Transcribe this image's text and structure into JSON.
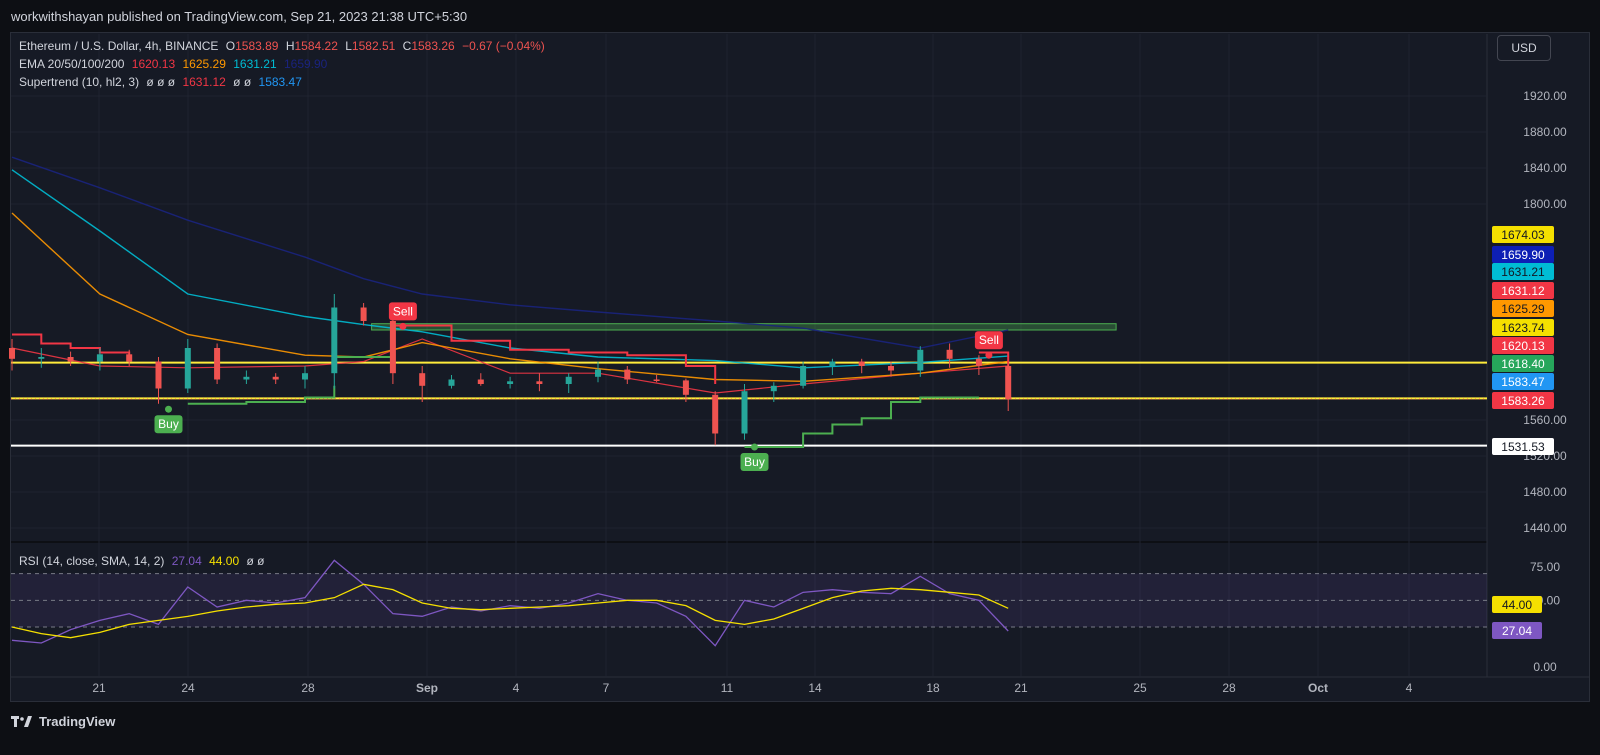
{
  "header": {
    "published": "workwithshayan published on TradingView.com, Sep 21, 2023 21:38 UTC+5:30"
  },
  "legend": {
    "symbol": "Ethereum / U.S. Dollar, 4h, BINANCE",
    "open_label": "O",
    "open": "1583.89",
    "high_label": "H",
    "high": "1584.22",
    "low_label": "L",
    "low": "1582.51",
    "close_label": "C",
    "close": "1583.26",
    "change": "−0.67 (−0.04%)",
    "ema_label": "EMA 20/50/100/200",
    "ema20": "1620.13",
    "ema50": "1625.29",
    "ema100": "1631.21",
    "ema200": "1659.90",
    "supertrend_label": "Supertrend (10, hl2, 3)",
    "supertrend_blank": "ø  ø  ø",
    "supertrend_up": "1631.12",
    "supertrend_blank2": "ø  ø",
    "supertrend_down": "1583.47",
    "rsi_label": "RSI (14, close, SMA, 14, 2)",
    "rsi": "27.04",
    "rsi_sma": "44.00",
    "rsi_blank": "ø  ø"
  },
  "currency_button": "USD",
  "brand": "TradingView",
  "colors": {
    "background": "#161a25",
    "up": "#26a69a",
    "down": "#ef5350",
    "ema20": "#f23645",
    "ema50": "#ff9800",
    "ema100": "#00bcd4",
    "ema200": "#1a237e",
    "supertrend_up": "#4caf50",
    "supertrend_down": "#f23645",
    "rsi": "#7e57c2",
    "rsi_sma": "#f5e000",
    "hline_yellow": "#ffeb3b",
    "hline_white": "#ffffff"
  },
  "chart_data": [
    {
      "type": "candlestick",
      "title": "Ethereum / U.S. Dollar, 4h, BINANCE",
      "ylim": [
        1420,
        1960
      ],
      "y_ticks": [
        "1920.00",
        "1880.00",
        "1840.00",
        "1800.00",
        "1560.00",
        "1520.00",
        "1480.00",
        "1440.00"
      ],
      "x_ticks": [
        "21",
        "24",
        "28",
        "Sep",
        "4",
        "7",
        "11",
        "14",
        "18",
        "21",
        "25",
        "28",
        "Oct",
        "4"
      ],
      "price_labels": [
        {
          "value": "1674.03",
          "color": "#f5e000",
          "text_color": "#131722"
        },
        {
          "value": "1659.90",
          "color": "#0d1fb5",
          "text_color": "#ffffff"
        },
        {
          "value": "1631.21",
          "color": "#00bcd4",
          "text_color": "#131722"
        },
        {
          "value": "1631.12",
          "color": "#f23645",
          "text_color": "#ffffff"
        },
        {
          "value": "1625.29",
          "color": "#ff9800",
          "text_color": "#131722"
        },
        {
          "value": "1623.74",
          "color": "#f5e000",
          "text_color": "#131722"
        },
        {
          "value": "1620.13",
          "color": "#f23645",
          "text_color": "#ffffff"
        },
        {
          "value": "1618.40",
          "color": "#26a65b",
          "text_color": "#ffffff"
        },
        {
          "value": "1583.47",
          "color": "#2196f3",
          "text_color": "#ffffff"
        },
        {
          "value": "1583.26",
          "color": "#f23645",
          "text_color": "#ffffff"
        },
        {
          "value": "1531.53",
          "color": "#ffffff",
          "text_color": "#131722"
        }
      ],
      "horizontal_lines": [
        {
          "value": 1623.74,
          "color": "#ffeb3b"
        },
        {
          "value": 1584,
          "color": "#ffeb3b"
        },
        {
          "value": 1531.53,
          "color": "#ffffff"
        }
      ],
      "zone": {
        "from_date": "Aug 30",
        "to_date": "Sep 24",
        "low": 1660,
        "high": 1667,
        "color": "#4caf50"
      },
      "signals": [
        {
          "label": "Buy",
          "date": "Aug 23",
          "price": 1572
        },
        {
          "label": "Sell",
          "date": "Aug 31",
          "price": 1664
        },
        {
          "label": "Buy",
          "date": "Sep 12",
          "price": 1530
        },
        {
          "label": "Sell",
          "date": "Sep 20",
          "price": 1632
        }
      ],
      "series": [
        {
          "name": "EMA 20",
          "x": [
            "Aug 18",
            "Aug 21",
            "Aug 24",
            "Aug 28",
            "Aug 30",
            "Sep 1",
            "Sep 4",
            "Sep 7",
            "Sep 11",
            "Sep 14",
            "Sep 18",
            "Sep 21"
          ],
          "values": [
            1640,
            1620,
            1618,
            1620,
            1625,
            1650,
            1612,
            1612,
            1590,
            1600,
            1612,
            1620
          ]
        },
        {
          "name": "EMA 50",
          "x": [
            "Aug 18",
            "Aug 21",
            "Aug 24",
            "Aug 28",
            "Aug 30",
            "Sep 1",
            "Sep 4",
            "Sep 7",
            "Sep 11",
            "Sep 14",
            "Sep 18",
            "Sep 21"
          ],
          "values": [
            1790,
            1700,
            1655,
            1632,
            1630,
            1646,
            1628,
            1617,
            1605,
            1603,
            1612,
            1625
          ]
        },
        {
          "name": "EMA 100",
          "x": [
            "Aug 18",
            "Aug 21",
            "Aug 24",
            "Aug 28",
            "Aug 30",
            "Sep 1",
            "Sep 4",
            "Sep 7",
            "Sep 11",
            "Sep 14",
            "Sep 18",
            "Sep 21"
          ],
          "values": [
            1838,
            1770,
            1700,
            1675,
            1666,
            1658,
            1640,
            1630,
            1626,
            1618,
            1624,
            1631
          ]
        },
        {
          "name": "EMA 200",
          "x": [
            "Aug 18",
            "Aug 21",
            "Aug 24",
            "Aug 28",
            "Aug 30",
            "Sep 1",
            "Sep 4",
            "Sep 7",
            "Sep 11",
            "Sep 14",
            "Sep 18",
            "Sep 21"
          ],
          "values": [
            1852,
            1818,
            1782,
            1741,
            1717,
            1700,
            1688,
            1680,
            1670,
            1662,
            1640,
            1660
          ]
        }
      ],
      "candles": [
        {
          "date": "Aug 18",
          "o": 1640,
          "h": 1650,
          "l": 1615,
          "c": 1628
        },
        {
          "date": "Aug 19",
          "o": 1628,
          "h": 1640,
          "l": 1618,
          "c": 1630
        },
        {
          "date": "Aug 20",
          "o": 1630,
          "h": 1636,
          "l": 1620,
          "c": 1625
        },
        {
          "date": "Aug 21",
          "o": 1625,
          "h": 1640,
          "l": 1615,
          "c": 1633
        },
        {
          "date": "Aug 22",
          "o": 1633,
          "h": 1638,
          "l": 1620,
          "c": 1625
        },
        {
          "date": "Aug 23",
          "o": 1625,
          "h": 1630,
          "l": 1578,
          "c": 1595
        },
        {
          "date": "Aug 24",
          "o": 1595,
          "h": 1650,
          "l": 1590,
          "c": 1640
        },
        {
          "date": "Aug 25",
          "o": 1640,
          "h": 1645,
          "l": 1600,
          "c": 1605
        },
        {
          "date": "Aug 26",
          "o": 1605,
          "h": 1615,
          "l": 1600,
          "c": 1608
        },
        {
          "date": "Aug 27",
          "o": 1608,
          "h": 1612,
          "l": 1600,
          "c": 1605
        },
        {
          "date": "Aug 28",
          "o": 1605,
          "h": 1620,
          "l": 1595,
          "c": 1612
        },
        {
          "date": "Aug 29",
          "o": 1612,
          "h": 1700,
          "l": 1595,
          "c": 1685
        },
        {
          "date": "Aug 30",
          "o": 1685,
          "h": 1690,
          "l": 1665,
          "c": 1670
        },
        {
          "date": "Aug 31",
          "o": 1670,
          "h": 1680,
          "l": 1600,
          "c": 1612
        },
        {
          "date": "Sep 1",
          "o": 1612,
          "h": 1620,
          "l": 1580,
          "c": 1598
        },
        {
          "date": "Sep 2",
          "o": 1598,
          "h": 1610,
          "l": 1595,
          "c": 1605
        },
        {
          "date": "Sep 3",
          "o": 1605,
          "h": 1612,
          "l": 1598,
          "c": 1600
        },
        {
          "date": "Sep 4",
          "o": 1600,
          "h": 1608,
          "l": 1595,
          "c": 1603
        },
        {
          "date": "Sep 5",
          "o": 1603,
          "h": 1612,
          "l": 1592,
          "c": 1600
        },
        {
          "date": "Sep 6",
          "o": 1600,
          "h": 1612,
          "l": 1590,
          "c": 1608
        },
        {
          "date": "Sep 7",
          "o": 1608,
          "h": 1625,
          "l": 1602,
          "c": 1616
        },
        {
          "date": "Sep 8",
          "o": 1616,
          "h": 1620,
          "l": 1600,
          "c": 1605
        },
        {
          "date": "Sep 9",
          "o": 1605,
          "h": 1610,
          "l": 1602,
          "c": 1604
        },
        {
          "date": "Sep 10",
          "o": 1604,
          "h": 1606,
          "l": 1580,
          "c": 1588
        },
        {
          "date": "Sep 11",
          "o": 1588,
          "h": 1592,
          "l": 1532,
          "c": 1545
        },
        {
          "date": "Sep 12",
          "o": 1545,
          "h": 1600,
          "l": 1538,
          "c": 1592
        },
        {
          "date": "Sep 13",
          "o": 1592,
          "h": 1602,
          "l": 1580,
          "c": 1598
        },
        {
          "date": "Sep 14",
          "o": 1598,
          "h": 1625,
          "l": 1595,
          "c": 1620
        },
        {
          "date": "Sep 15",
          "o": 1620,
          "h": 1628,
          "l": 1610,
          "c": 1625
        },
        {
          "date": "Sep 16",
          "o": 1625,
          "h": 1628,
          "l": 1612,
          "c": 1620
        },
        {
          "date": "Sep 17",
          "o": 1620,
          "h": 1625,
          "l": 1608,
          "c": 1615
        },
        {
          "date": "Sep 18",
          "o": 1615,
          "h": 1642,
          "l": 1608,
          "c": 1638
        },
        {
          "date": "Sep 19",
          "o": 1638,
          "h": 1645,
          "l": 1618,
          "c": 1628
        },
        {
          "date": "Sep 20",
          "o": 1628,
          "h": 1632,
          "l": 1610,
          "c": 1620
        },
        {
          "date": "Sep 21",
          "o": 1620,
          "h": 1622,
          "l": 1570,
          "c": 1583.26
        }
      ]
    },
    {
      "type": "line",
      "title": "RSI (14, close, SMA, 14, 2)",
      "ylim": [
        0,
        85
      ],
      "y_ticks": [
        "75.00",
        "50.00",
        "0.00"
      ],
      "bands": [
        30,
        50,
        70
      ],
      "price_labels": [
        {
          "value": "44.00",
          "color": "#f5e000",
          "text_color": "#131722"
        },
        {
          "value": "27.04",
          "color": "#7e57c2",
          "text_color": "#ffffff"
        }
      ],
      "series": [
        {
          "name": "RSI",
          "x": [
            "Aug 18",
            "Aug 19",
            "Aug 20",
            "Aug 21",
            "Aug 22",
            "Aug 23",
            "Aug 24",
            "Aug 25",
            "Aug 26",
            "Aug 27",
            "Aug 28",
            "Aug 29",
            "Aug 30",
            "Aug 31",
            "Sep 1",
            "Sep 2",
            "Sep 3",
            "Sep 4",
            "Sep 5",
            "Sep 6",
            "Sep 7",
            "Sep 8",
            "Sep 9",
            "Sep 10",
            "Sep 11",
            "Sep 12",
            "Sep 13",
            "Sep 14",
            "Sep 15",
            "Sep 16",
            "Sep 17",
            "Sep 18",
            "Sep 19",
            "Sep 20",
            "Sep 21"
          ],
          "values": [
            20,
            18,
            28,
            35,
            40,
            32,
            60,
            45,
            50,
            48,
            52,
            80,
            62,
            40,
            38,
            45,
            42,
            46,
            44,
            48,
            55,
            50,
            48,
            38,
            16,
            50,
            45,
            56,
            58,
            56,
            55,
            68,
            55,
            50,
            27
          ]
        },
        {
          "name": "RSI-based MA",
          "x": [
            "Aug 18",
            "Aug 19",
            "Aug 20",
            "Aug 21",
            "Aug 22",
            "Aug 23",
            "Aug 24",
            "Aug 25",
            "Aug 26",
            "Aug 27",
            "Aug 28",
            "Aug 29",
            "Aug 30",
            "Aug 31",
            "Sep 1",
            "Sep 2",
            "Sep 3",
            "Sep 4",
            "Sep 5",
            "Sep 6",
            "Sep 7",
            "Sep 8",
            "Sep 9",
            "Sep 10",
            "Sep 11",
            "Sep 12",
            "Sep 13",
            "Sep 14",
            "Sep 15",
            "Sep 16",
            "Sep 17",
            "Sep 18",
            "Sep 19",
            "Sep 20",
            "Sep 21"
          ],
          "values": [
            30,
            25,
            22,
            26,
            32,
            35,
            38,
            42,
            45,
            47,
            48,
            52,
            62,
            58,
            48,
            44,
            43,
            44,
            45,
            46,
            48,
            50,
            50,
            46,
            35,
            32,
            36,
            44,
            52,
            57,
            59,
            58,
            56,
            54,
            44
          ]
        }
      ]
    }
  ]
}
